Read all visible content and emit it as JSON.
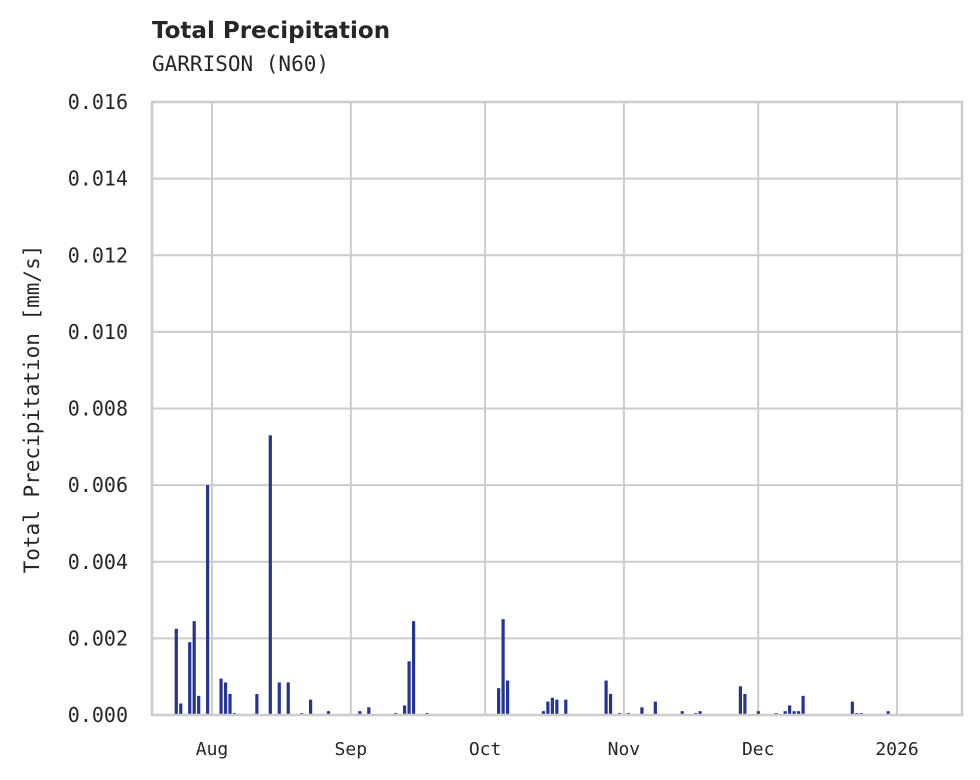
{
  "header": {
    "title": "Total Precipitation",
    "subtitle": "GARRISON (N60)"
  },
  "colors": {
    "bar": "#253494",
    "grid": "#cccccc",
    "frame": "#cccccc",
    "text": "#262626"
  },
  "chart_data": {
    "type": "bar",
    "title": "Total Precipitation",
    "subtitle": "GARRISON (N60)",
    "xlabel": "",
    "ylabel": "Total Precipitation [mm/s]",
    "ylim": [
      0,
      0.016
    ],
    "grid": true,
    "yticks": [
      "0.000",
      "0.002",
      "0.004",
      "0.006",
      "0.008",
      "0.010",
      "0.012",
      "0.014",
      "0.016"
    ],
    "xticks": [
      "Aug",
      "Sep",
      "Oct",
      "Nov",
      "Dec",
      "2026"
    ],
    "series": [
      {
        "name": "Total Precipitation",
        "points": [
          {
            "date": "2025-07-24",
            "value": 0.00225
          },
          {
            "date": "2025-07-25",
            "value": 0.0003
          },
          {
            "date": "2025-07-27",
            "value": 0.0019
          },
          {
            "date": "2025-07-28",
            "value": 0.00245
          },
          {
            "date": "2025-07-29",
            "value": 0.0005
          },
          {
            "date": "2025-07-31",
            "value": 0.006
          },
          {
            "date": "2025-08-03",
            "value": 0.00095
          },
          {
            "date": "2025-08-04",
            "value": 0.00085
          },
          {
            "date": "2025-08-05",
            "value": 0.00055
          },
          {
            "date": "2025-08-06",
            "value": 5e-05
          },
          {
            "date": "2025-08-11",
            "value": 0.00055
          },
          {
            "date": "2025-08-14",
            "value": 0.0073
          },
          {
            "date": "2025-08-16",
            "value": 0.00085
          },
          {
            "date": "2025-08-18",
            "value": 0.00085
          },
          {
            "date": "2025-08-21",
            "value": 5e-05
          },
          {
            "date": "2025-08-23",
            "value": 0.0004
          },
          {
            "date": "2025-08-27",
            "value": 0.0001
          },
          {
            "date": "2025-09-03",
            "value": 0.0001
          },
          {
            "date": "2025-09-05",
            "value": 0.0002
          },
          {
            "date": "2025-09-11",
            "value": 5e-05
          },
          {
            "date": "2025-09-13",
            "value": 0.00025
          },
          {
            "date": "2025-09-14",
            "value": 0.0014
          },
          {
            "date": "2025-09-15",
            "value": 0.00245
          },
          {
            "date": "2025-09-18",
            "value": 5e-05
          },
          {
            "date": "2025-10-04",
            "value": 0.0007
          },
          {
            "date": "2025-10-05",
            "value": 0.0025
          },
          {
            "date": "2025-10-06",
            "value": 0.0009
          },
          {
            "date": "2025-10-14",
            "value": 0.0001
          },
          {
            "date": "2025-10-15",
            "value": 0.00035
          },
          {
            "date": "2025-10-16",
            "value": 0.00045
          },
          {
            "date": "2025-10-17",
            "value": 0.0004
          },
          {
            "date": "2025-10-19",
            "value": 0.0004
          },
          {
            "date": "2025-10-28",
            "value": 0.0009
          },
          {
            "date": "2025-10-29",
            "value": 0.00055
          },
          {
            "date": "2025-10-31",
            "value": 5e-05
          },
          {
            "date": "2025-11-02",
            "value": 5e-05
          },
          {
            "date": "2025-11-05",
            "value": 0.0002
          },
          {
            "date": "2025-11-08",
            "value": 0.00035
          },
          {
            "date": "2025-11-14",
            "value": 0.0001
          },
          {
            "date": "2025-11-17",
            "value": 5e-05
          },
          {
            "date": "2025-11-18",
            "value": 0.0001
          },
          {
            "date": "2025-11-27",
            "value": 0.00075
          },
          {
            "date": "2025-11-28",
            "value": 0.00055
          },
          {
            "date": "2025-12-01",
            "value": 0.0001
          },
          {
            "date": "2025-12-05",
            "value": 5e-05
          },
          {
            "date": "2025-12-07",
            "value": 0.0001
          },
          {
            "date": "2025-12-08",
            "value": 0.00025
          },
          {
            "date": "2025-12-09",
            "value": 0.0001
          },
          {
            "date": "2025-12-10",
            "value": 0.0001
          },
          {
            "date": "2025-12-11",
            "value": 0.0005
          },
          {
            "date": "2025-12-22",
            "value": 0.00035
          },
          {
            "date": "2025-12-23",
            "value": 5e-05
          },
          {
            "date": "2025-12-24",
            "value": 5e-05
          },
          {
            "date": "2025-12-30",
            "value": 0.0001
          }
        ]
      }
    ]
  }
}
